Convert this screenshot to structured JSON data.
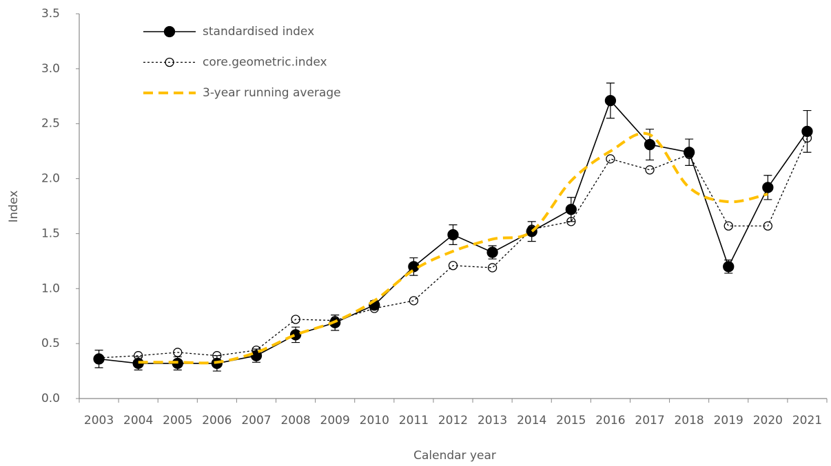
{
  "chart_data": {
    "type": "line",
    "x_label": "Calendar year",
    "y_label": "Index",
    "categories": [
      "2003",
      "2004",
      "2005",
      "2006",
      "2007",
      "2008",
      "2009",
      "2010",
      "2011",
      "2012",
      "2013",
      "2014",
      "2015",
      "2016",
      "2017",
      "2018",
      "2019",
      "2020",
      "2021"
    ],
    "series": [
      {
        "name": "standardised index",
        "color": "#000000",
        "style": "solid-filled",
        "values": [
          0.36,
          0.32,
          0.32,
          0.32,
          0.39,
          0.58,
          0.69,
          0.85,
          1.2,
          1.49,
          1.33,
          1.52,
          1.72,
          2.71,
          2.31,
          2.24,
          1.2,
          1.92,
          2.43
        ],
        "errors": [
          0.08,
          0.06,
          0.06,
          0.07,
          0.06,
          0.07,
          0.07,
          0.04,
          0.08,
          0.09,
          0.06,
          0.09,
          0.11,
          0.16,
          0.14,
          0.12,
          0.06,
          0.11,
          0.19
        ]
      },
      {
        "name": "core.geometric.index",
        "color": "#000000",
        "style": "dotted-open",
        "values": [
          0.37,
          0.39,
          0.42,
          0.39,
          0.44,
          0.72,
          0.71,
          0.82,
          0.89,
          1.21,
          1.19,
          1.54,
          1.61,
          2.18,
          2.08,
          2.22,
          1.57,
          1.57,
          2.37
        ]
      },
      {
        "name": "3-year running average",
        "color": "#ffc000",
        "style": "dashed-smooth",
        "values": [
          null,
          0.33,
          0.33,
          0.33,
          0.42,
          0.58,
          0.7,
          0.89,
          1.17,
          1.34,
          1.45,
          1.52,
          1.98,
          2.25,
          2.4,
          1.92,
          1.79,
          1.86,
          null
        ]
      }
    ],
    "ylim": [
      0,
      3.5
    ],
    "yticks": [
      {
        "value": 0,
        "label": "0.0"
      },
      0.5,
      {
        "value": 1,
        "label": "1.0"
      },
      1.5,
      {
        "value": 2,
        "label": "2.0"
      },
      2.5,
      {
        "value": 3,
        "label": "3.0"
      },
      3.5
    ],
    "grid": false,
    "legend": "top-left"
  }
}
